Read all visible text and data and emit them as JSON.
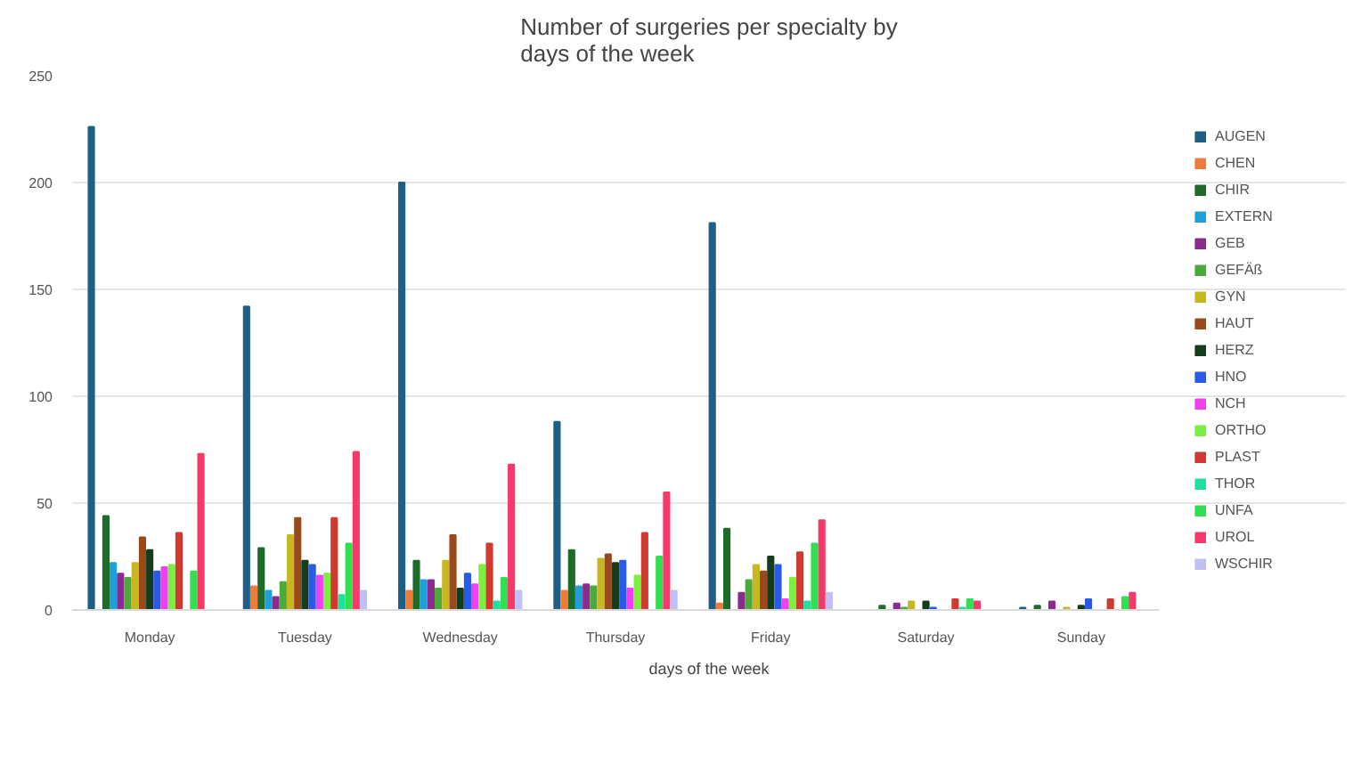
{
  "chart_data": {
    "type": "bar",
    "title": "Number of surgeries per specialty by days of the week",
    "xlabel": "days of the week",
    "categories": [
      "Monday",
      "Tuesday",
      "Wednesday",
      "Thursday",
      "Friday",
      "Saturday",
      "Sunday"
    ],
    "ylim": [
      0,
      250
    ],
    "yticks": [
      0,
      50,
      100,
      150,
      200,
      250
    ],
    "grid": "y",
    "legend": "right",
    "series": [
      {
        "name": "AUGEN",
        "color": "#1f5f86",
        "values": [
          226,
          142,
          200,
          88,
          181,
          null,
          1
        ]
      },
      {
        "name": "CHEN",
        "color": "#f07c3a",
        "values": [
          null,
          11,
          9,
          9,
          3,
          null,
          null
        ]
      },
      {
        "name": "CHIR",
        "color": "#1e6b2a",
        "values": [
          44,
          29,
          23,
          28,
          38,
          2,
          2
        ]
      },
      {
        "name": "EXTERN",
        "color": "#1ea0d8",
        "values": [
          22,
          9,
          14,
          11,
          null,
          null,
          null
        ]
      },
      {
        "name": "GEB",
        "color": "#8e2a8e",
        "values": [
          17,
          6,
          14,
          12,
          8,
          3,
          4
        ]
      },
      {
        "name": "GEFÄß",
        "color": "#4caa3a",
        "values": [
          15,
          13,
          10,
          11,
          14,
          1,
          null
        ]
      },
      {
        "name": "GYN",
        "color": "#c8b820",
        "values": [
          22,
          35,
          23,
          24,
          21,
          4,
          1
        ]
      },
      {
        "name": "HAUT",
        "color": "#9a4a1a",
        "values": [
          34,
          43,
          35,
          26,
          18,
          null,
          null
        ]
      },
      {
        "name": "HERZ",
        "color": "#143c1e",
        "values": [
          28,
          23,
          10,
          22,
          25,
          4,
          2
        ]
      },
      {
        "name": "HNO",
        "color": "#2a5ae8",
        "values": [
          18,
          21,
          17,
          23,
          21,
          1,
          5
        ]
      },
      {
        "name": "NCH",
        "color": "#f040f0",
        "values": [
          20,
          16,
          12,
          10,
          5,
          null,
          null
        ]
      },
      {
        "name": "ORTHO",
        "color": "#7cf040",
        "values": [
          21,
          17,
          21,
          16,
          15,
          null,
          null
        ]
      },
      {
        "name": "PLAST",
        "color": "#d03a30",
        "values": [
          36,
          43,
          31,
          36,
          27,
          5,
          5
        ]
      },
      {
        "name": "THOR",
        "color": "#20e0a0",
        "values": [
          null,
          7,
          4,
          null,
          4,
          1,
          null
        ]
      },
      {
        "name": "UNFA",
        "color": "#30e050",
        "values": [
          18,
          31,
          15,
          25,
          31,
          5,
          6
        ]
      },
      {
        "name": "UROL",
        "color": "#f53a6a",
        "values": [
          73,
          74,
          68,
          55,
          42,
          4,
          8
        ]
      },
      {
        "name": "WSCHIR",
        "color": "#c0c0f5",
        "values": [
          null,
          9,
          9,
          9,
          8,
          null,
          null
        ]
      }
    ]
  }
}
